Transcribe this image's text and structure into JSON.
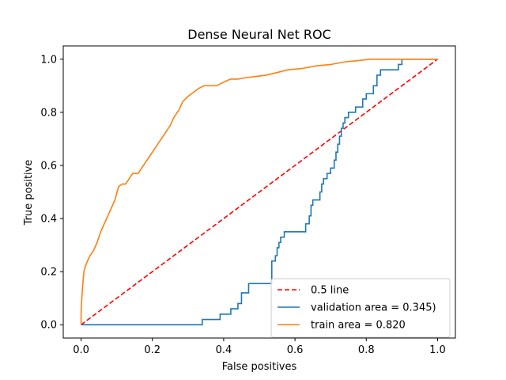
{
  "chart_data": {
    "type": "line",
    "title": "Dense Neural Net ROC",
    "xlabel": "False positives",
    "ylabel": "True positive",
    "xlim": [
      -0.05,
      1.05
    ],
    "ylim": [
      -0.05,
      1.05
    ],
    "xticks": [
      "0.0",
      "0.2",
      "0.4",
      "0.6",
      "0.8",
      "1.0"
    ],
    "yticks": [
      "0.0",
      "0.2",
      "0.4",
      "0.6",
      "0.8",
      "1.0"
    ],
    "grid": false,
    "legend": "lower-right",
    "series": [
      {
        "name": "0.5 line",
        "color": "#ff0000",
        "style": "dashed",
        "x": [
          0.0,
          1.0
        ],
        "y": [
          0.0,
          1.0
        ]
      },
      {
        "name": "validation area = 0.345)",
        "color": "#1f77b4",
        "style": "step",
        "x": [
          0.0,
          0.34,
          0.34,
          0.39,
          0.39,
          0.42,
          0.42,
          0.44,
          0.44,
          0.45,
          0.45,
          0.47,
          0.47,
          0.535,
          0.535,
          0.545,
          0.545,
          0.55,
          0.55,
          0.555,
          0.555,
          0.56,
          0.56,
          0.57,
          0.57,
          0.63,
          0.63,
          0.64,
          0.64,
          0.645,
          0.645,
          0.65,
          0.65,
          0.67,
          0.67,
          0.675,
          0.675,
          0.68,
          0.68,
          0.69,
          0.69,
          0.7,
          0.7,
          0.71,
          0.71,
          0.715,
          0.715,
          0.72,
          0.72,
          0.725,
          0.725,
          0.73,
          0.73,
          0.735,
          0.735,
          0.74,
          0.74,
          0.75,
          0.75,
          0.77,
          0.77,
          0.79,
          0.79,
          0.8,
          0.8,
          0.82,
          0.82,
          0.83,
          0.83,
          0.84,
          0.84,
          0.89,
          0.89,
          0.9,
          0.9,
          0.91,
          0.91,
          1.0
        ],
        "y": [
          0.0,
          0.0,
          0.02,
          0.02,
          0.04,
          0.04,
          0.06,
          0.06,
          0.08,
          0.08,
          0.12,
          0.12,
          0.155,
          0.155,
          0.24,
          0.24,
          0.26,
          0.26,
          0.29,
          0.29,
          0.31,
          0.31,
          0.33,
          0.33,
          0.35,
          0.35,
          0.38,
          0.38,
          0.41,
          0.41,
          0.45,
          0.45,
          0.47,
          0.47,
          0.5,
          0.5,
          0.53,
          0.53,
          0.55,
          0.55,
          0.57,
          0.57,
          0.59,
          0.59,
          0.62,
          0.62,
          0.65,
          0.65,
          0.68,
          0.68,
          0.71,
          0.71,
          0.74,
          0.74,
          0.76,
          0.76,
          0.78,
          0.78,
          0.8,
          0.8,
          0.82,
          0.82,
          0.85,
          0.85,
          0.87,
          0.87,
          0.9,
          0.9,
          0.94,
          0.94,
          0.96,
          0.96,
          0.98,
          0.98,
          1.0,
          1.0,
          1.0,
          1.0
        ]
      },
      {
        "name": "train area = 0.820",
        "color": "#ff7f0e",
        "style": "step",
        "x": [
          0.0,
          0.0,
          0.003,
          0.006,
          0.008,
          0.012,
          0.018,
          0.025,
          0.035,
          0.045,
          0.055,
          0.065,
          0.075,
          0.085,
          0.095,
          0.105,
          0.115,
          0.125,
          0.135,
          0.145,
          0.16,
          0.175,
          0.185,
          0.195,
          0.205,
          0.22,
          0.235,
          0.25,
          0.26,
          0.275,
          0.285,
          0.3,
          0.31,
          0.32,
          0.33,
          0.345,
          0.36,
          0.38,
          0.395,
          0.41,
          0.42,
          0.44,
          0.46,
          0.49,
          0.52,
          0.55,
          0.58,
          0.62,
          0.66,
          0.7,
          0.74,
          0.78,
          0.81,
          0.85,
          0.9,
          1.0
        ],
        "y": [
          0.0,
          0.05,
          0.12,
          0.17,
          0.2,
          0.22,
          0.24,
          0.26,
          0.28,
          0.31,
          0.35,
          0.38,
          0.41,
          0.44,
          0.47,
          0.52,
          0.53,
          0.53,
          0.55,
          0.57,
          0.57,
          0.6,
          0.62,
          0.64,
          0.66,
          0.69,
          0.72,
          0.75,
          0.78,
          0.81,
          0.84,
          0.86,
          0.87,
          0.88,
          0.89,
          0.9,
          0.9,
          0.9,
          0.91,
          0.92,
          0.925,
          0.925,
          0.93,
          0.935,
          0.94,
          0.95,
          0.96,
          0.965,
          0.975,
          0.98,
          0.99,
          0.995,
          1.0,
          1.0,
          1.0,
          1.0
        ]
      }
    ]
  }
}
